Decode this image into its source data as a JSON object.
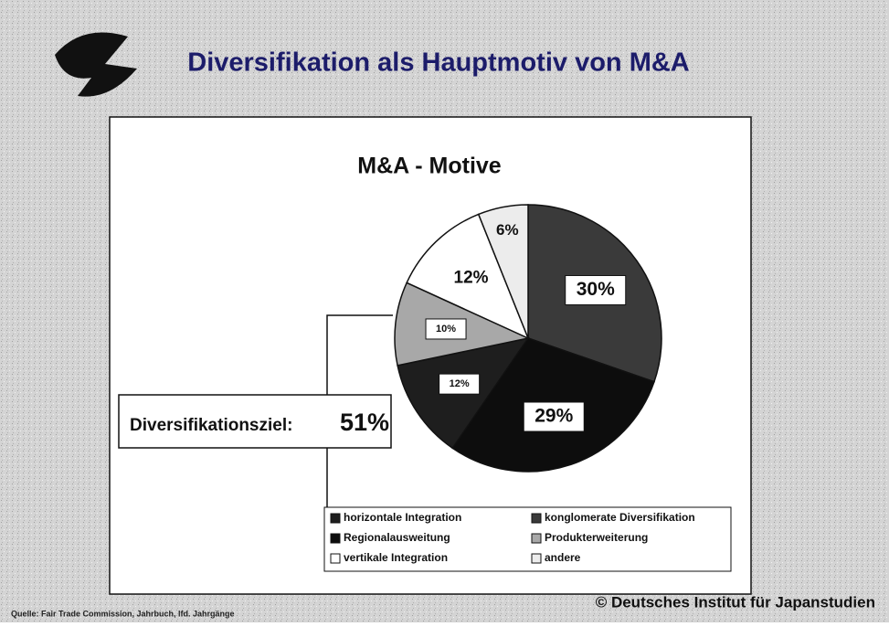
{
  "title": "Diversifikation als Hauptmotiv von M&A",
  "chart_data": {
    "type": "pie",
    "title": "M&A - Motive",
    "categories": [
      "horizontale Integration",
      "konglomerate Diversifikation",
      "Regionalausweitung",
      "Produkterweiterung",
      "vertikale Integration",
      "andere"
    ],
    "values": [
      12,
      30,
      29,
      10,
      12,
      6
    ],
    "value_labels": [
      "12%",
      "30%",
      "29%",
      "10%",
      "12%",
      "6%"
    ],
    "colors": [
      "#1e1e1e",
      "#3a3a3a",
      "#0d0d0d",
      "#a8a8a8",
      "#ffffff",
      "#ececec"
    ],
    "annotation": "Diversifikationsziel:",
    "annotation_value": "51%"
  },
  "footer": {
    "source": "Quelle: Fair Trade Commission, Jahrbuch, lfd. Jahrgänge",
    "copyright": "© Deutsches Institut für Japanstudien"
  }
}
